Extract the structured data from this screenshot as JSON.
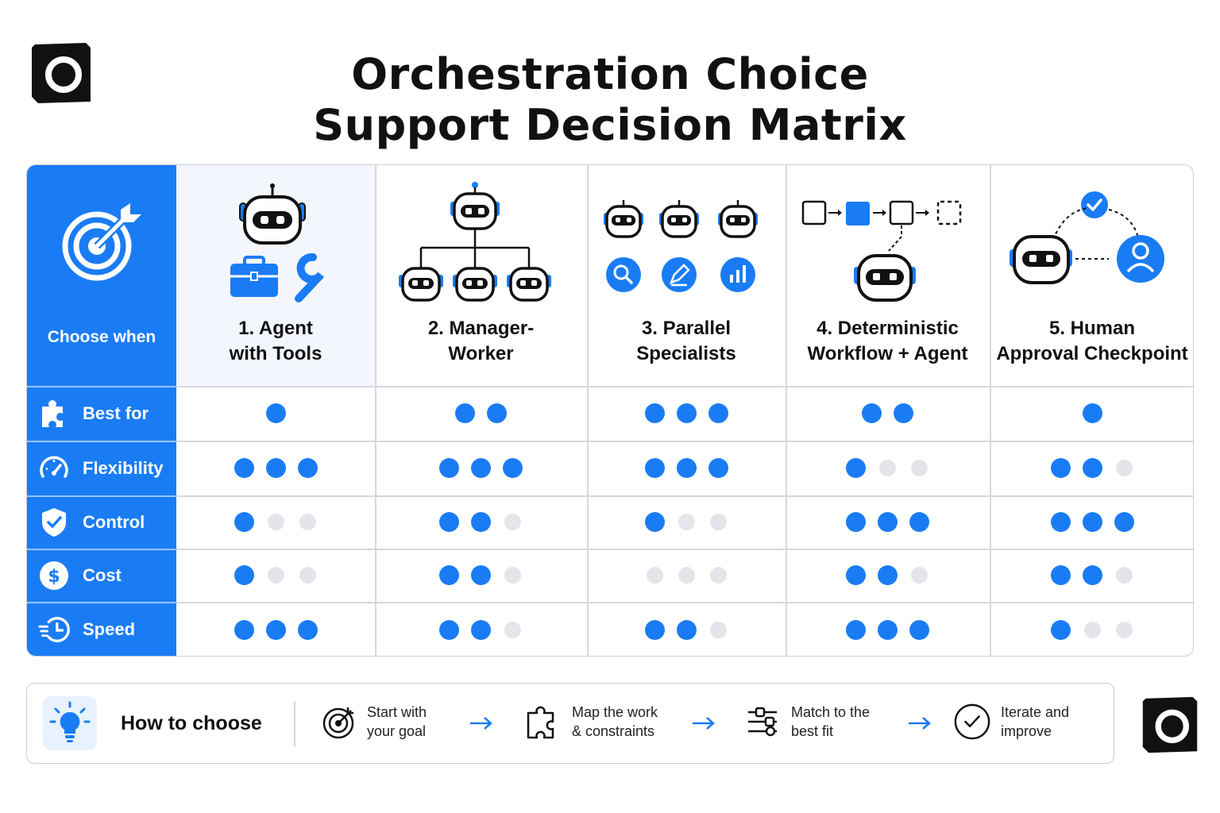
{
  "title": {
    "line1": "Orchestration Choice",
    "line2": "Support Decision Matrix"
  },
  "colors": {
    "accent": "#1a7cf5",
    "dot_off": "#e3e5ea",
    "border": "#c9ced8"
  },
  "matrix": {
    "corner_label": "Choose when",
    "columns": [
      {
        "line1": "1. Agent",
        "line2": "with Tools",
        "icon": "robot-with-toolbox-icon"
      },
      {
        "line1": "2. Manager-",
        "line2": "Worker",
        "icon": "robot-hierarchy-icon"
      },
      {
        "line1": "3. Parallel",
        "line2": "Specialists",
        "icon": "parallel-robots-icon"
      },
      {
        "line1": "4. Deterministic",
        "line2": "Workflow + Agent",
        "icon": "workflow-robot-icon"
      },
      {
        "line1": "5. Human",
        "line2": "Approval Checkpoint",
        "icon": "human-approval-icon"
      }
    ],
    "rows": [
      {
        "label": "Best for",
        "icon": "puzzle-icon",
        "max": [
          1,
          2,
          3,
          2,
          1
        ],
        "filled": [
          1,
          2,
          3,
          2,
          1
        ]
      },
      {
        "label": "Flexibility",
        "icon": "gauge-icon",
        "max": [
          3,
          3,
          3,
          3,
          3
        ],
        "filled": [
          3,
          3,
          3,
          1,
          2
        ]
      },
      {
        "label": "Control",
        "icon": "shield-check-icon",
        "max": [
          3,
          3,
          3,
          3,
          3
        ],
        "filled": [
          1,
          2,
          1,
          3,
          3
        ]
      },
      {
        "label": "Cost",
        "icon": "dollar-icon",
        "max": [
          3,
          3,
          3,
          3,
          3
        ],
        "filled": [
          1,
          2,
          0,
          2,
          2
        ]
      },
      {
        "label": "Speed",
        "icon": "fast-clock-icon",
        "max": [
          3,
          3,
          3,
          3,
          3
        ],
        "filled": [
          3,
          2,
          2,
          3,
          1
        ]
      }
    ]
  },
  "how_to_choose": {
    "title": "How to choose",
    "icon": "lightbulb-icon",
    "steps": [
      {
        "line1": "Start with",
        "line2": "your goal",
        "icon": "target-icon"
      },
      {
        "line1": "Map the work",
        "line2": "& constraints",
        "icon": "puzzle-outline-icon"
      },
      {
        "line1": "Match to the",
        "line2": "best fit",
        "icon": "sliders-icon"
      },
      {
        "line1": "Iterate and",
        "line2": "improve",
        "icon": "check-circle-icon"
      }
    ]
  }
}
